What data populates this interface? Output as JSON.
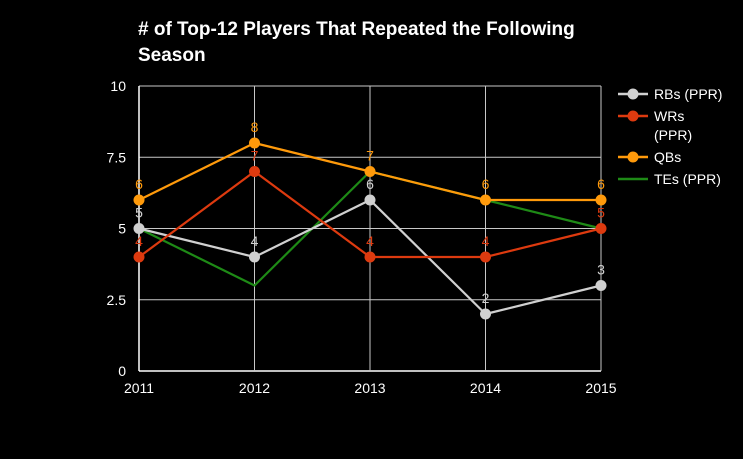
{
  "chart_data": {
    "type": "line",
    "title": "# of Top-12 Players That Repeated the Following Season",
    "title_lines": [
      "# of Top-12 Players That Repeated the Following",
      "Season"
    ],
    "xlabel": "",
    "ylabel": "",
    "categories": [
      "2011",
      "2012",
      "2013",
      "2014",
      "2015"
    ],
    "ylim": [
      0,
      10
    ],
    "yticks": [
      0,
      2.5,
      5,
      7.5,
      10
    ],
    "ytick_labels": [
      "0",
      "2.5",
      "5",
      "7.5",
      "10"
    ],
    "grid": true,
    "legend_position": "right",
    "series": [
      {
        "name": "RBs (PPR)",
        "legend_lines": [
          "RBs (PPR)"
        ],
        "color": "#d0d0d0",
        "markers": true,
        "values": [
          5,
          4,
          6,
          2,
          3
        ],
        "labels": [
          "5",
          "4",
          "6",
          "2",
          "3"
        ]
      },
      {
        "name": "WRs (PPR)",
        "legend_lines": [
          "WRs",
          "(PPR)"
        ],
        "color": "#dd3a0f",
        "markers": true,
        "values": [
          4,
          7,
          4,
          4,
          5
        ],
        "labels": [
          "4",
          "7",
          "4",
          "4",
          "5"
        ]
      },
      {
        "name": "QBs",
        "legend_lines": [
          "QBs"
        ],
        "color": "#ff9a0b",
        "markers": true,
        "values": [
          6,
          8,
          7,
          6,
          6
        ],
        "labels": [
          "6",
          "8",
          "7",
          "6",
          "6"
        ]
      },
      {
        "name": "TEs (PPR)",
        "legend_lines": [
          "TEs (PPR)"
        ],
        "color": "#1e8a16",
        "markers": false,
        "values": [
          5,
          3,
          7,
          6,
          5
        ],
        "labels": []
      }
    ]
  }
}
